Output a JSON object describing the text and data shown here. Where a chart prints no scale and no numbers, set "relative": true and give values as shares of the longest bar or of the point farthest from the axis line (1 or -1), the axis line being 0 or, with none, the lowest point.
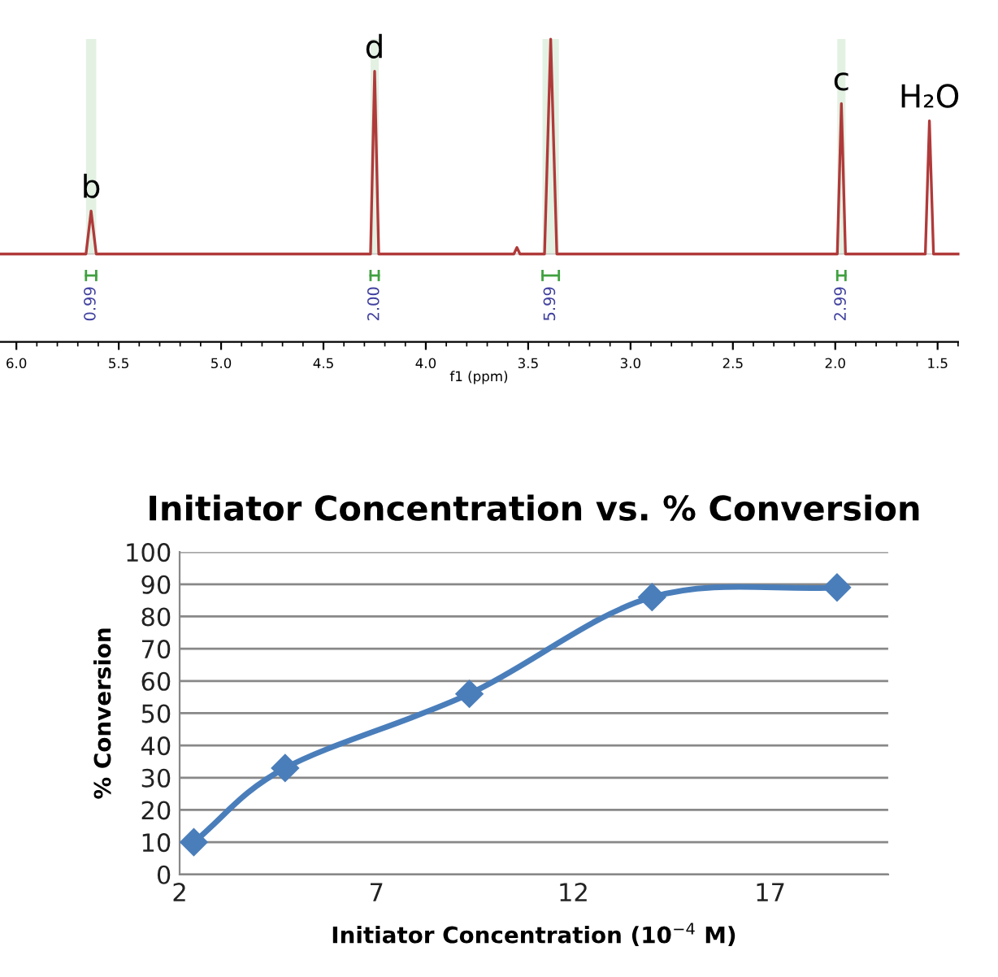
{
  "chart_data": [
    {
      "type": "line",
      "relative": true,
      "xlabel": "f1 (ppm)",
      "xlim": [
        6.08,
        1.4
      ],
      "xticks": [
        {
          "value": 6.0,
          "label": "6.0"
        },
        {
          "value": 5.5,
          "label": "5.5"
        },
        {
          "value": 5.0,
          "label": "5.0"
        },
        {
          "value": 4.5,
          "label": "4.5"
        },
        {
          "value": 4.0,
          "label": "4.0"
        },
        {
          "value": 3.5,
          "label": "3.5"
        },
        {
          "value": 3.0,
          "label": "3.0"
        },
        {
          "value": 2.5,
          "label": "2.5"
        },
        {
          "value": 2.0,
          "label": "2.0"
        },
        {
          "value": 1.5,
          "label": "1.5"
        }
      ],
      "grid": false,
      "marker": "none",
      "series": [
        {
          "color": "#b03a3a",
          "x": [
            6.08,
            5.66,
            5.635,
            5.61,
            4.27,
            4.25,
            4.23,
            3.57,
            3.555,
            3.54,
            3.42,
            3.39,
            3.36,
            1.99,
            1.97,
            1.95,
            1.56,
            1.54,
            1.52,
            1.4
          ],
          "values": [
            0,
            0,
            0.2,
            0,
            0,
            0.85,
            0,
            0,
            0.03,
            0,
            0,
            1,
            0,
            0,
            0.7,
            0,
            0,
            0.62,
            0,
            0
          ]
        }
      ],
      "annotations": [
        {
          "text": "b",
          "x": 5.635,
          "y": 0.2
        },
        {
          "text": "d",
          "x": 4.25,
          "y": 0.85
        },
        {
          "text": "c",
          "x": 1.97,
          "y": 0.7
        },
        {
          "text": "H₂O",
          "x": 1.54,
          "y": 0.62
        }
      ],
      "bands": [
        {
          "axis": "x",
          "from": 5.66,
          "to": 5.61,
          "label": "0.99",
          "color": "#40a040"
        },
        {
          "axis": "x",
          "from": 4.27,
          "to": 4.23,
          "label": "2.00",
          "color": "#40a040"
        },
        {
          "axis": "x",
          "from": 3.43,
          "to": 3.35,
          "label": "5.99",
          "color": "#40a040"
        },
        {
          "axis": "x",
          "from": 1.99,
          "to": 1.95,
          "label": "2.99",
          "color": "#40a040"
        }
      ]
    },
    {
      "type": "line",
      "title": "Initiator Concentration vs. % Conversion",
      "xlabel": "Initiator Concentration (10$^{−4}$ M)",
      "ylabel": "% Conversion",
      "xlim": [
        2,
        20
      ],
      "xticks": [
        2,
        7,
        12,
        17
      ],
      "ylim": [
        0,
        100
      ],
      "yticks": [
        0,
        10,
        20,
        30,
        40,
        50,
        60,
        70,
        80,
        90,
        100
      ],
      "grid": "y",
      "marker": "diamond",
      "line_style": "solid",
      "series": [
        {
          "color": "#4a7ebb",
          "x": [
            2.36,
            4.68,
            9.36,
            14.0,
            18.7
          ],
          "values": [
            10,
            33,
            56,
            86,
            89
          ]
        }
      ]
    }
  ]
}
